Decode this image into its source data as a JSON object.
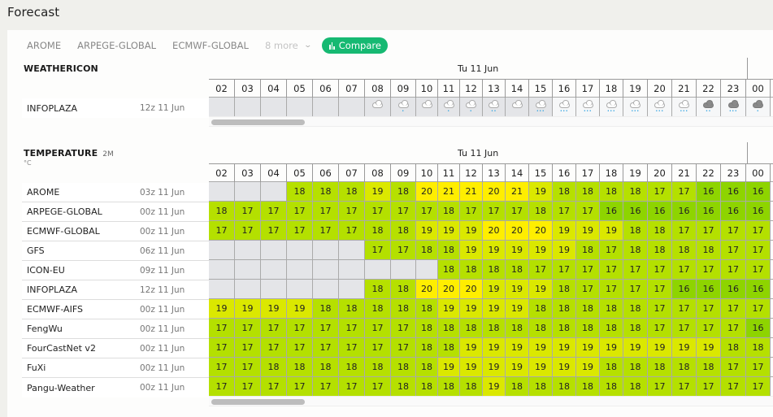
{
  "page_title": "Forecast",
  "tabs": [
    {
      "label": "AROME"
    },
    {
      "label": "ARPEGE-GLOBAL"
    },
    {
      "label": "ECMWF-GLOBAL"
    }
  ],
  "more_label": "8 more",
  "compare_label": "Compare",
  "colors": {
    "accent": "#16b972",
    "na": "#e4e5e8",
    "t16": "#8ed400",
    "t17": "#b4e000",
    "t18": "#b6e000",
    "t19": "#dbe800",
    "t20": "#ffee00",
    "t21": "#ffee00"
  },
  "hours": [
    "02",
    "03",
    "04",
    "05",
    "06",
    "07",
    "08",
    "09",
    "10",
    "11",
    "12",
    "13",
    "14",
    "15",
    "16",
    "17",
    "18",
    "19",
    "20",
    "21",
    "22",
    "23",
    "00"
  ],
  "date_label": "Tu 11 Jun",
  "weathericon": {
    "title": "WEATHERICON",
    "rows": [
      {
        "model": "INFOPLAZA",
        "run": "12z 11 Jun",
        "icons": [
          null,
          null,
          null,
          null,
          null,
          null,
          "cloud",
          "cloud-light-rain",
          "cloud",
          "cloud-light-rain",
          "cloud-light-rain",
          "cloud-moderate-rain",
          "cloud",
          "cloud-heavy-rain",
          "cloud-heavy-rain",
          "cloud-heavy-rain",
          "cloud-heavy-rain",
          "cloud-heavy-rain",
          "cloud-heavy-rain",
          "cloud-heavy-rain",
          "dark-cloud-moderate-rain",
          "dark-cloud-heavy-rain",
          "dark-cloud-light-rain"
        ]
      }
    ]
  },
  "temperature": {
    "title": "TEMPERATURE",
    "subtitle": "2M",
    "unit": "°C",
    "rows": [
      {
        "model": "AROME",
        "run": "03z 11 Jun",
        "values": [
          null,
          null,
          null,
          18,
          18,
          18,
          19,
          18,
          20,
          21,
          21,
          20,
          21,
          19,
          18,
          18,
          18,
          18,
          17,
          17,
          16,
          16,
          16
        ]
      },
      {
        "model": "ARPEGE-GLOBAL",
        "run": "00z 11 Jun",
        "values": [
          18,
          17,
          17,
          17,
          17,
          17,
          17,
          17,
          17,
          18,
          17,
          17,
          17,
          18,
          17,
          17,
          16,
          16,
          16,
          16,
          16,
          16,
          16
        ]
      },
      {
        "model": "ECMWF-GLOBAL",
        "run": "00z 11 Jun",
        "values": [
          17,
          17,
          17,
          17,
          17,
          17,
          18,
          18,
          19,
          19,
          19,
          20,
          20,
          20,
          19,
          19,
          19,
          18,
          18,
          17,
          17,
          17,
          17
        ]
      },
      {
        "model": "GFS",
        "run": "06z 11 Jun",
        "values": [
          null,
          null,
          null,
          null,
          null,
          null,
          17,
          17,
          18,
          18,
          19,
          19,
          19,
          19,
          19,
          18,
          17,
          18,
          18,
          18,
          18,
          17,
          17
        ]
      },
      {
        "model": "ICON-EU",
        "run": "09z 11 Jun",
        "values": [
          null,
          null,
          null,
          null,
          null,
          null,
          null,
          null,
          null,
          18,
          18,
          18,
          18,
          17,
          17,
          17,
          17,
          17,
          17,
          17,
          17,
          17,
          17
        ]
      },
      {
        "model": "INFOPLAZA",
        "run": "12z 11 Jun",
        "values": [
          null,
          null,
          null,
          null,
          null,
          null,
          18,
          18,
          20,
          20,
          20,
          19,
          19,
          19,
          18,
          17,
          17,
          17,
          17,
          16,
          16,
          16,
          16
        ]
      },
      {
        "model": "ECMWF-AIFS",
        "run": "00z 11 Jun",
        "values": [
          19,
          19,
          19,
          19,
          18,
          18,
          18,
          18,
          18,
          19,
          19,
          19,
          19,
          18,
          18,
          18,
          18,
          18,
          17,
          17,
          17,
          17,
          17
        ]
      },
      {
        "model": "FengWu",
        "run": "00z 11 Jun",
        "values": [
          17,
          17,
          17,
          17,
          17,
          17,
          17,
          17,
          18,
          18,
          18,
          18,
          18,
          18,
          18,
          18,
          18,
          18,
          17,
          17,
          17,
          17,
          16
        ]
      },
      {
        "model": "FourCastNet v2",
        "run": "00z 11 Jun",
        "values": [
          17,
          17,
          17,
          17,
          17,
          17,
          17,
          17,
          18,
          18,
          19,
          19,
          19,
          19,
          19,
          19,
          19,
          19,
          19,
          19,
          19,
          18,
          18
        ]
      },
      {
        "model": "FuXi",
        "run": "00z 11 Jun",
        "values": [
          17,
          17,
          18,
          18,
          18,
          18,
          18,
          18,
          18,
          19,
          19,
          19,
          19,
          19,
          19,
          19,
          18,
          18,
          18,
          18,
          18,
          17,
          17
        ]
      },
      {
        "model": "Pangu-Weather",
        "run": "00z 11 Jun",
        "values": [
          17,
          17,
          17,
          17,
          17,
          17,
          17,
          18,
          18,
          18,
          18,
          19,
          18,
          18,
          18,
          18,
          18,
          18,
          17,
          17,
          17,
          17,
          17
        ]
      }
    ]
  }
}
